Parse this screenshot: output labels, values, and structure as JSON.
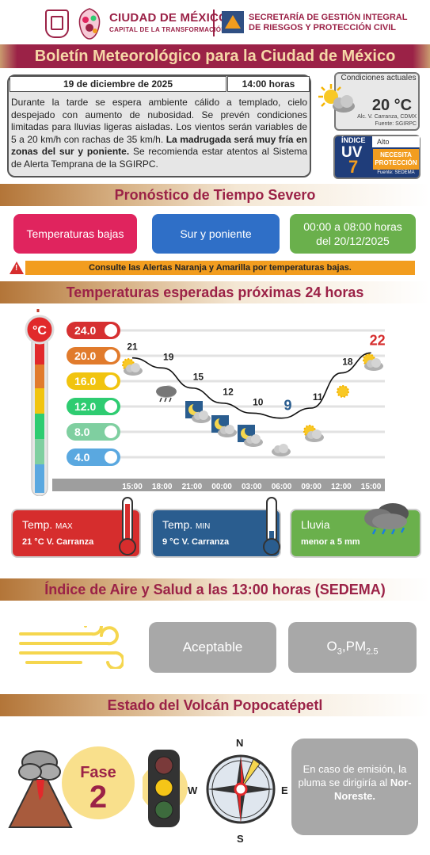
{
  "header": {
    "org_name": "CIUDAD DE MÉXICO",
    "org_tagline": "CAPITAL DE LA TRANSFORMACIÓN",
    "agency_line1": "SECRETARÍA DE GESTIÓN INTEGRAL",
    "agency_line2": "DE RIESGOS Y PROTECCIÓN CIVIL",
    "title": "Boletín Meteorológico para la Ciudad de México"
  },
  "info": {
    "date": "19 de diciembre de 2025",
    "time": "14:00 horas",
    "text_plain": "Durante la tarde se espera ambiente cálido a templado, cielo despejado con aumento de nubosidad. Se prevén condiciones limitadas para lluvias ligeras aisladas. Los vientos serán variables de 5 a 20 km/h con rachas de 35 km/h.",
    "text_bold": "La madrugada será muy fría en zonas del sur y poniente.",
    "text_end": "Se recomienda estar atentos al Sistema de Alerta Temprana de la SGIRPC."
  },
  "conditions": {
    "title": "Condiciones actuales",
    "temperature": "20 °C",
    "location": "Alc. V. Carranza, CDMX",
    "source": "Fuente: SGIRPC",
    "icon": "sun-cloud-icon"
  },
  "uv": {
    "label": "ÍNDICE",
    "uv_text": "UV",
    "value": "7",
    "level": "Alto",
    "badge": "NECESITA PROTECCIÓN",
    "source": "Fuente: SEDEMA"
  },
  "severe": {
    "title": "Pronóstico de Tiempo Severo",
    "cards": [
      {
        "label": "Temperaturas bajas",
        "color": "#e0245e"
      },
      {
        "label": "Sur y poniente",
        "color": "#2f6fc7"
      },
      {
        "label": "00:00 a 08:00 horas del 20/12/2025",
        "color": "#6ab04c"
      }
    ],
    "alert": "Consulte las Alertas Naranja y Amarilla por temperaturas bajas."
  },
  "temps24": {
    "title": "Temperaturas esperadas próximas 24 horas",
    "unit_badge": "°C"
  },
  "chart_data": {
    "type": "line",
    "x": [
      "15:00",
      "18:00",
      "21:00",
      "00:00",
      "03:00",
      "06:00",
      "09:00",
      "12:00",
      "15:00"
    ],
    "values": [
      21,
      19,
      15,
      12,
      10,
      9,
      11,
      18,
      22
    ],
    "scale_labels": [
      "24.0",
      "20.0",
      "16.0",
      "12.0",
      "8.0",
      "4.0"
    ],
    "scale_colors": [
      "#d63031",
      "#e17b2c",
      "#f1c40f",
      "#2ecc71",
      "#7fcfa0",
      "#5aa8e0"
    ],
    "icons": [
      "sun-cloud-icon",
      "rain-cloud-icon",
      "moon-cloud-icon",
      "moon-cloud-icon",
      "moon-cloud-icon",
      "cloud-icon",
      "sun-cloud-icon",
      "sun-icon",
      "sun-cloud-icon"
    ],
    "ylim": [
      2,
      26
    ]
  },
  "stats": {
    "max_label": "Temp.",
    "max_suffix": "MAX",
    "max_value": "21 °C  V. Carranza",
    "min_label": "Temp.",
    "min_suffix": "MIN",
    "min_value": "9 °C  V. Carranza",
    "rain_label": "Lluvia",
    "rain_value": "menor a 5 mm"
  },
  "air": {
    "title": "Índice de Aire y Salud a las 13:00 horas (SEDEMA)",
    "quality": "Aceptable",
    "pollutant_main": "O",
    "pollutant_sub": "3",
    "pollutant_sep": ",",
    "pollutant_main2": "PM",
    "pollutant_sub2": "2.5"
  },
  "volcano": {
    "title": "Estado del Volcán Popocatépetl",
    "phase_label": "Fase",
    "phase_number": "2",
    "compass_n": "N",
    "compass_s": "S",
    "compass_e": "E",
    "compass_w": "W",
    "note_plain": "En caso de emisión, la pluma se dirigiría al",
    "note_bold": "Nor-Noreste."
  }
}
